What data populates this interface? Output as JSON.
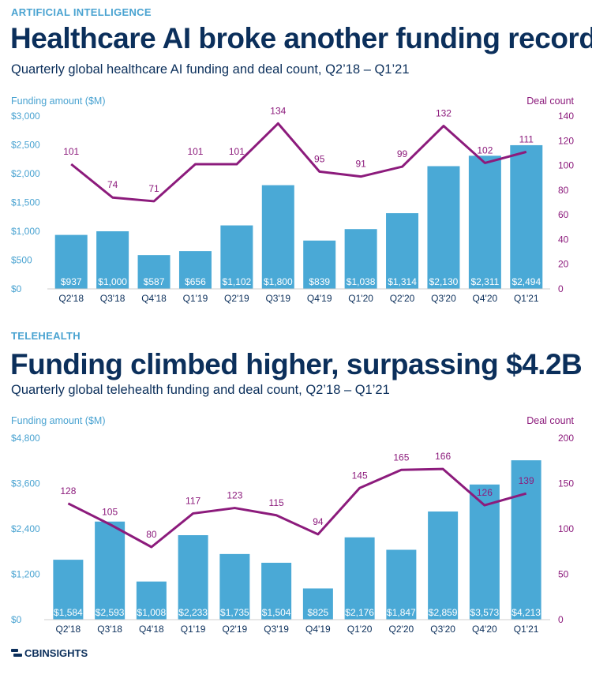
{
  "brand": {
    "logo_text": "CBINSIGHTS",
    "bar_color": "#4aa9d6",
    "line_color": "#8c1b7c"
  },
  "sections": [
    {
      "tag": "ARTIFICIAL INTELLIGENCE",
      "title": "Healthcare AI broke another funding record",
      "subtitle": "Quarterly global healthcare AI funding and deal count, Q2’18 – Q1’21"
    },
    {
      "tag": "TELEHEALTH",
      "title": "Funding climbed higher, surpassing $4.2B",
      "subtitle": "Quarterly global telehealth funding and deal count, Q2’18 – Q1’21"
    }
  ],
  "chart_data": [
    {
      "type": "bar",
      "title": "Healthcare AI broke another funding record",
      "ylabel": "Funding amount ($M)",
      "y2label": "Deal count",
      "categories": [
        "Q2'18",
        "Q3'18",
        "Q4'18",
        "Q1'19",
        "Q2'19",
        "Q3'19",
        "Q4'19",
        "Q1'20",
        "Q2'20",
        "Q3'20",
        "Q4'20",
        "Q1'21"
      ],
      "series": [
        {
          "name": "Funding amount ($M)",
          "type": "bar",
          "axis": "left",
          "values": [
            937,
            1000,
            587,
            656,
            1102,
            1800,
            839,
            1038,
            1314,
            2130,
            2311,
            2494
          ],
          "labels": [
            "$937",
            "$1,000",
            "$587",
            "$656",
            "$1,102",
            "$1,800",
            "$839",
            "$1,038",
            "$1,314",
            "$2,130",
            "$2,311",
            "$2,494"
          ]
        },
        {
          "name": "Deal count",
          "type": "line",
          "axis": "right",
          "values": [
            101,
            74,
            71,
            101,
            101,
            134,
            95,
            91,
            99,
            132,
            102,
            111
          ]
        }
      ],
      "ylim": [
        0,
        3000
      ],
      "yticks": [
        "$0",
        "$500",
        "$1,000",
        "$1,500",
        "$2,000",
        "$2,500",
        "$3,000"
      ],
      "y2lim": [
        0,
        140
      ],
      "y2ticks": [
        "0",
        "20",
        "40",
        "60",
        "80",
        "100",
        "120",
        "140"
      ]
    },
    {
      "type": "bar",
      "title": "Funding climbed higher, surpassing $4.2B",
      "ylabel": "Funding amount ($M)",
      "y2label": "Deal count",
      "categories": [
        "Q2'18",
        "Q3'18",
        "Q4'18",
        "Q1'19",
        "Q2'19",
        "Q3'19",
        "Q4'19",
        "Q1'20",
        "Q2'20",
        "Q3'20",
        "Q4'20",
        "Q1'21"
      ],
      "series": [
        {
          "name": "Funding amount ($M)",
          "type": "bar",
          "axis": "left",
          "values": [
            1584,
            2593,
            1008,
            2233,
            1735,
            1504,
            825,
            2176,
            1847,
            2859,
            3573,
            4213
          ],
          "labels": [
            "$1,584",
            "$2,593",
            "$1,008",
            "$2,233",
            "$1,735",
            "$1,504",
            "$825",
            "$2,176",
            "$1,847",
            "$2,859",
            "$3,573",
            "$4,213"
          ]
        },
        {
          "name": "Deal count",
          "type": "line",
          "axis": "right",
          "values": [
            128,
            105,
            80,
            117,
            123,
            115,
            94,
            145,
            165,
            166,
            126,
            139
          ]
        }
      ],
      "ylim": [
        0,
        4800
      ],
      "yticks": [
        "$0",
        "$1,200",
        "$2,400",
        "$3,600",
        "$4,800"
      ],
      "y2lim": [
        0,
        200
      ],
      "y2ticks": [
        "0",
        "50",
        "100",
        "150",
        "200"
      ]
    }
  ]
}
